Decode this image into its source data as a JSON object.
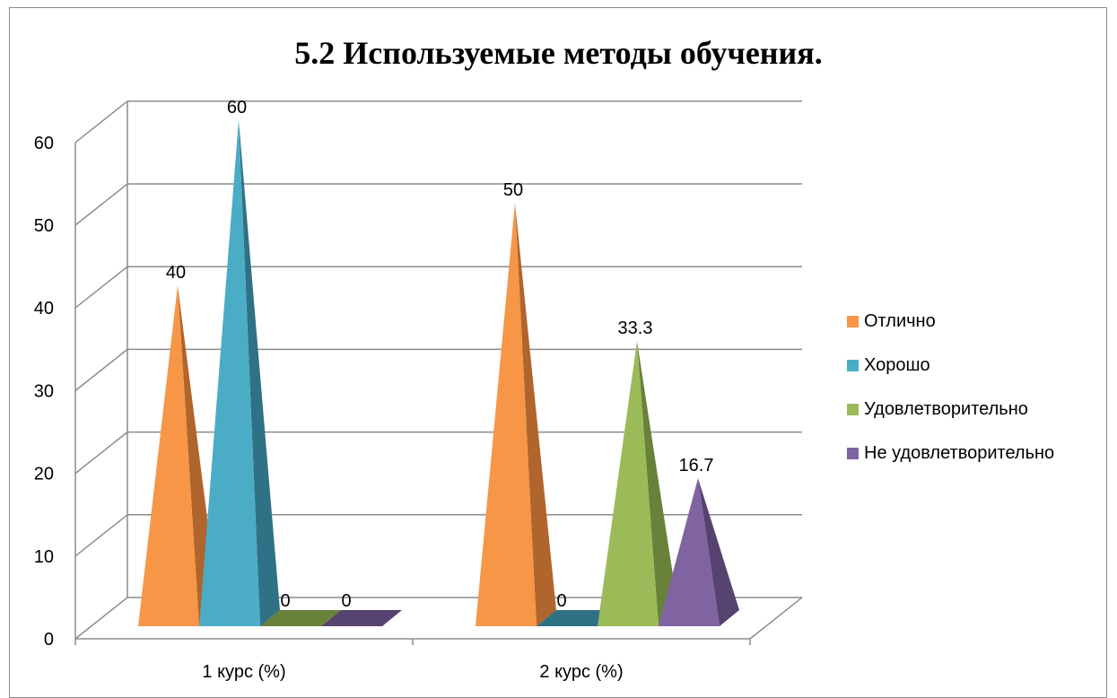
{
  "chart_data": {
    "type": "bar",
    "title": "5.2 Используемые методы обучения.",
    "categories": [
      "1 курс (%)",
      "2 курс (%)"
    ],
    "series": [
      {
        "name": "Отлично",
        "values": [
          40,
          50
        ],
        "color": "#f79646",
        "shade": "#b0652c"
      },
      {
        "name": "Хорошо",
        "values": [
          60,
          0
        ],
        "color": "#4bacc6",
        "shade": "#2f7185"
      },
      {
        "name": "Удовлетворительно",
        "values": [
          0,
          33.3
        ],
        "color": "#9bbb59",
        "shade": "#68823a"
      },
      {
        "name": "Не удовлетворительно",
        "values": [
          0,
          16.7
        ],
        "color": "#8064a2",
        "shade": "#57436f"
      }
    ],
    "data_labels": [
      [
        "40",
        "50"
      ],
      [
        "60",
        "0"
      ],
      [
        "0",
        "33.3"
      ],
      [
        "0",
        "16.7"
      ]
    ],
    "yticks": [
      "0",
      "10",
      "20",
      "30",
      "40",
      "50",
      "60"
    ],
    "ylim": [
      0,
      60
    ],
    "grid": true,
    "legend_position": "right",
    "bar_shape": "pyramid-3d"
  }
}
